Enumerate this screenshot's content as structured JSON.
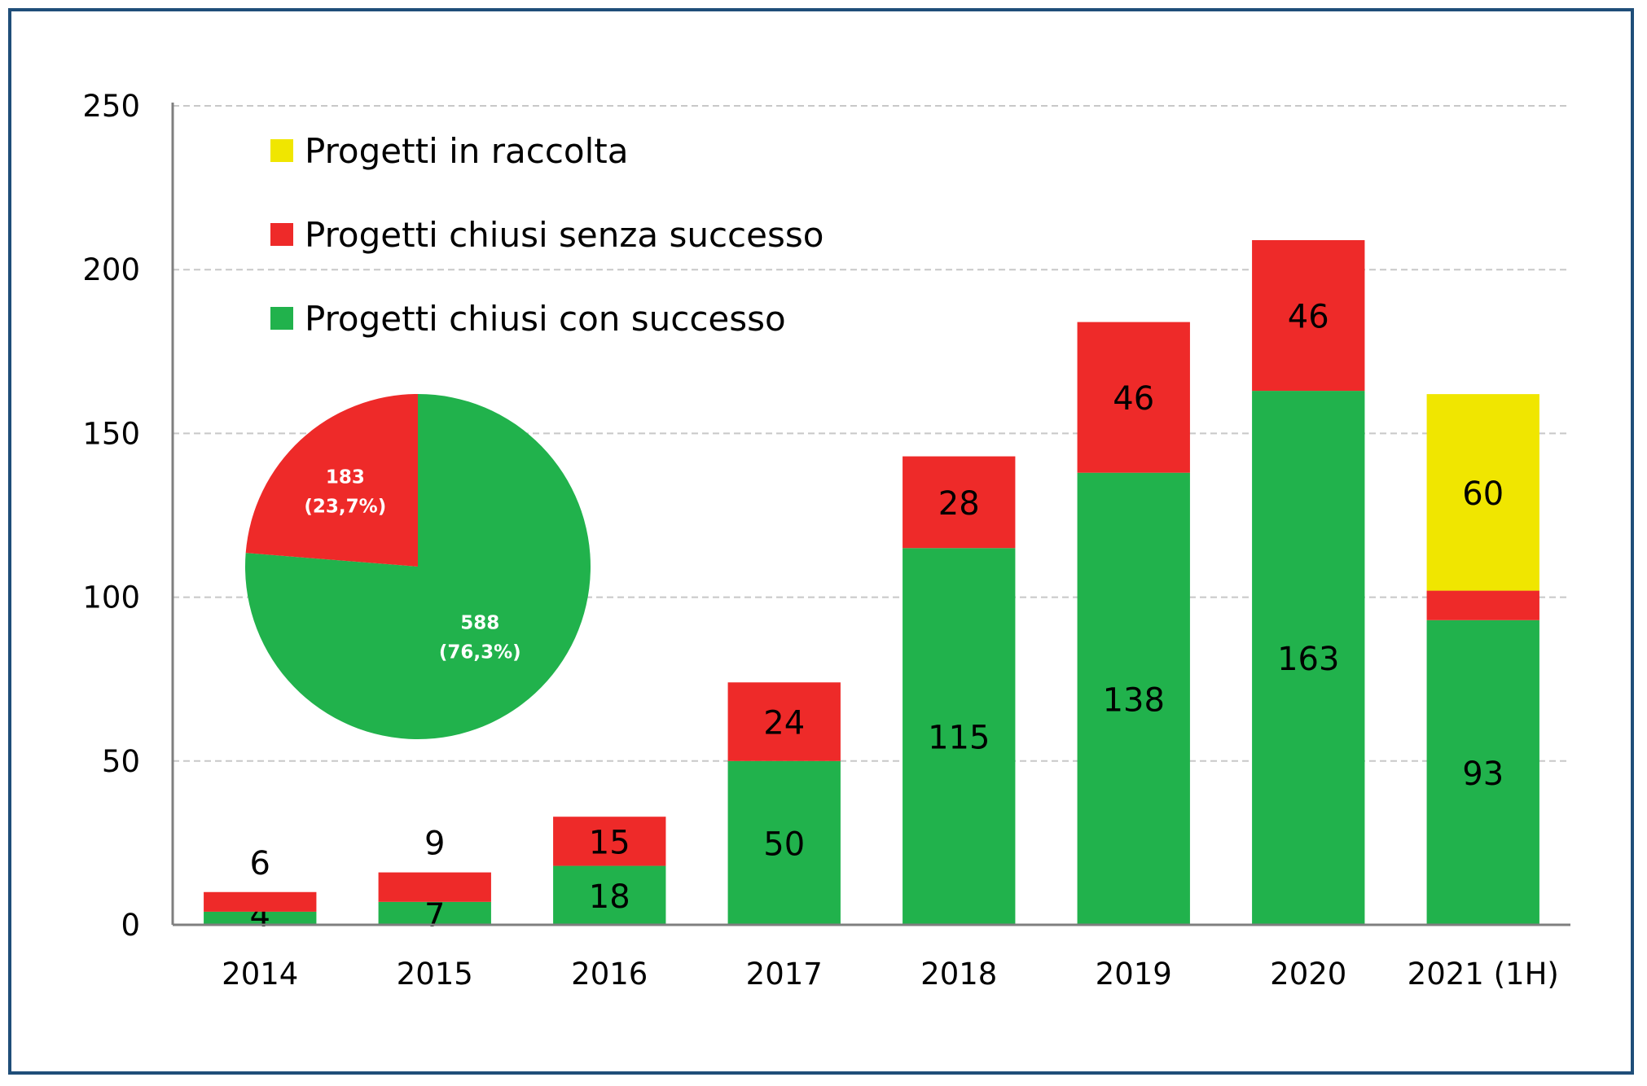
{
  "chart_data": [
    {
      "type": "bar",
      "stacked": true,
      "categories": [
        "2014",
        "2015",
        "2016",
        "2017",
        "2018",
        "2019",
        "2020",
        "2021 (1H)"
      ],
      "series": [
        {
          "name": "Progetti chiusi con successo",
          "color": "#21b24c",
          "values": [
            4,
            7,
            18,
            50,
            115,
            138,
            163,
            93
          ]
        },
        {
          "name": "Progetti chiusi senza successo",
          "color": "#ee2a29",
          "values": [
            6,
            9,
            15,
            24,
            28,
            46,
            46,
            9
          ]
        },
        {
          "name": "Progetti in raccolta",
          "color": "#f0e600",
          "values": [
            0,
            0,
            0,
            0,
            0,
            0,
            0,
            60
          ]
        }
      ],
      "ylim": [
        0,
        250
      ],
      "yticks": [
        0,
        50,
        100,
        150,
        200,
        250
      ],
      "grid": true,
      "legend": "top-left",
      "legend_order": [
        2,
        1,
        0
      ]
    },
    {
      "type": "pie",
      "slices": [
        {
          "value": 588,
          "label": "588",
          "pct": "(76,3%)",
          "color": "#21b24c"
        },
        {
          "value": 183,
          "label": "183",
          "pct": "(23,7%)",
          "color": "#ee2a29"
        }
      ]
    }
  ]
}
